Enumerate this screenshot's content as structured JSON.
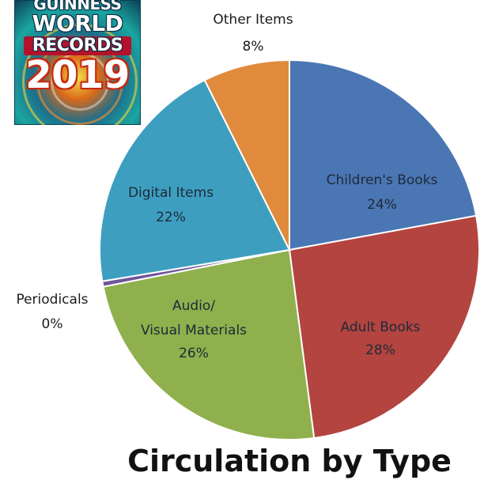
{
  "logo": {
    "line1": "GUINNESS",
    "line2": "WORLD",
    "line3": "RECORDS",
    "line4": "2019"
  },
  "chart_data": {
    "type": "pie",
    "title": "Circulation by Type",
    "slices": [
      {
        "name": "Children's Books",
        "percent_label": "24%",
        "value": 24,
        "color": "#4a76b3"
      },
      {
        "name": "Adult Books",
        "percent_label": "28%",
        "value": 28,
        "color": "#b3443f"
      },
      {
        "name": "Audio/ Visual Materials",
        "name_line1": "Audio/",
        "name_line2": "Visual Materials",
        "percent_label": "26%",
        "value": 26,
        "color": "#8fb04c"
      },
      {
        "name": "Periodicals",
        "percent_label": "0%",
        "value": 0.5,
        "color": "#6f559a"
      },
      {
        "name": "Digital Items",
        "percent_label": "22%",
        "value": 22,
        "color": "#3e9ebf"
      },
      {
        "name": "Other Items",
        "percent_label": "8%",
        "value": 8,
        "color": "#e08a3c"
      }
    ],
    "legend": "none"
  }
}
